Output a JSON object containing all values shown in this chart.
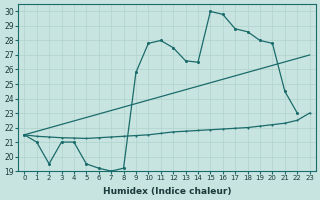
{
  "xlabel": "Humidex (Indice chaleur)",
  "bg_color": "#c8e4e0",
  "line_color": "#1a6b6b",
  "grid_color": "#b0d4cc",
  "xlim": [
    -0.5,
    23.5
  ],
  "ylim": [
    19,
    30.5
  ],
  "yticks": [
    19,
    20,
    21,
    22,
    23,
    24,
    25,
    26,
    27,
    28,
    29,
    30
  ],
  "xticks": [
    0,
    1,
    2,
    3,
    4,
    5,
    6,
    7,
    8,
    9,
    10,
    11,
    12,
    13,
    14,
    15,
    16,
    17,
    18,
    19,
    20,
    21,
    22,
    23
  ],
  "series1_x": [
    0,
    1,
    2,
    3,
    4,
    5,
    6,
    7,
    8,
    9,
    10,
    11,
    12,
    13,
    14,
    15,
    16,
    17,
    18,
    19,
    20,
    21,
    22
  ],
  "series1_y": [
    21.5,
    21.0,
    19.5,
    21.0,
    21.0,
    19.5,
    19.2,
    19.0,
    19.2,
    25.8,
    27.8,
    28.0,
    27.5,
    26.6,
    26.5,
    30.0,
    29.8,
    28.8,
    28.6,
    28.0,
    27.8,
    24.5,
    23.0
  ],
  "series2_x": [
    0,
    23
  ],
  "series2_y": [
    21.5,
    27.0
  ],
  "series3_x": [
    0,
    1,
    2,
    3,
    4,
    5,
    6,
    7,
    8,
    9,
    10,
    11,
    12,
    13,
    14,
    15,
    16,
    17,
    18,
    19,
    20,
    21,
    22,
    23
  ],
  "series3_y": [
    21.5,
    21.4,
    21.35,
    21.3,
    21.28,
    21.25,
    21.3,
    21.35,
    21.4,
    21.45,
    21.5,
    21.6,
    21.7,
    21.75,
    21.8,
    21.85,
    21.9,
    21.95,
    22.0,
    22.1,
    22.2,
    22.3,
    22.5,
    23.0
  ]
}
